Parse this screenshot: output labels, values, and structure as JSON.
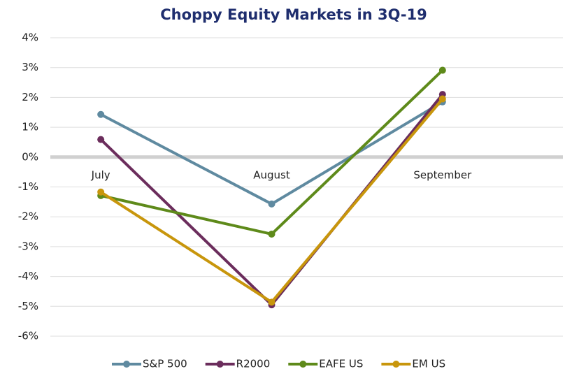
{
  "chart_data": {
    "type": "line",
    "title": "Choppy Equity Markets in 3Q-19",
    "categories": [
      "July",
      "August",
      "September"
    ],
    "series": [
      {
        "name": "S&P 500",
        "color": "#5f8aa0",
        "values": [
          1.43,
          -1.57,
          1.85
        ]
      },
      {
        "name": "R2000",
        "color": "#6b2d5c",
        "values": [
          0.59,
          -4.95,
          2.1
        ]
      },
      {
        "name": "EAFE US",
        "color": "#5e8a1a",
        "values": [
          -1.29,
          -2.58,
          2.91
        ]
      },
      {
        "name": "EM US",
        "color": "#c8960c",
        "values": [
          -1.17,
          -4.86,
          1.95
        ]
      }
    ],
    "ylim": [
      -6,
      4
    ],
    "yticks": [
      {
        "value": -6,
        "label": "-6%"
      },
      {
        "value": -5,
        "label": "-5%"
      },
      {
        "value": -4,
        "label": "-4%"
      },
      {
        "value": -3,
        "label": "-3%"
      },
      {
        "value": -2,
        "label": "-2%"
      },
      {
        "value": -1,
        "label": "-1%"
      },
      {
        "value": 0,
        "label": "0%"
      },
      {
        "value": 1,
        "label": "1%"
      },
      {
        "value": 2,
        "label": "2%"
      },
      {
        "value": 3,
        "label": "3%"
      },
      {
        "value": 4,
        "label": "4%"
      }
    ],
    "grid": true,
    "legend": "bottom"
  }
}
